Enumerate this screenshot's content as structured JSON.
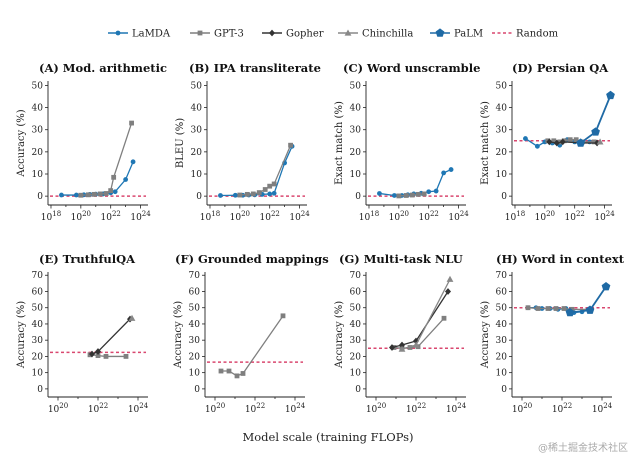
{
  "figure": {
    "xlabel": "Model scale (training FLOPs)",
    "watermark": "@稀土掘金技术社区"
  },
  "legend": [
    {
      "name": "LaMDA",
      "color": "#1f77b4",
      "marker": "circle"
    },
    {
      "name": "GPT-3",
      "color": "#7f7f7f",
      "marker": "square"
    },
    {
      "name": "Gopher",
      "color": "#333333",
      "marker": "diamond"
    },
    {
      "name": "Chinchilla",
      "color": "#888888",
      "marker": "triangle"
    },
    {
      "name": "PaLM",
      "color": "#1f6aa5",
      "marker": "pentagon"
    },
    {
      "name": "Random",
      "color": "#d9476f",
      "marker": "dash"
    }
  ],
  "chart_data": [
    {
      "type": "line",
      "title": "(A) Mod. arithmetic",
      "ylabel": "Accuracy (%)",
      "xscale": "log",
      "xlim_exp": [
        17.8,
        24.5
      ],
      "xticks_exp": [
        18,
        20,
        22,
        24
      ],
      "ylim": [
        -4,
        52
      ],
      "yticks": [
        0,
        10,
        20,
        30,
        40,
        50
      ],
      "random": 0,
      "series": [
        {
          "name": "LaMDA",
          "points": [
            [
              18.7,
              0.5
            ],
            [
              19.7,
              0.5
            ],
            [
              20.2,
              0.6
            ],
            [
              20.6,
              0.8
            ],
            [
              21.0,
              0.9
            ],
            [
              21.5,
              1.0
            ],
            [
              22.0,
              1.5
            ],
            [
              22.3,
              2.0
            ],
            [
              23.0,
              7.5
            ],
            [
              23.5,
              15.5
            ]
          ]
        },
        {
          "name": "GPT-3",
          "points": [
            [
              20.0,
              0.4
            ],
            [
              20.5,
              0.6
            ],
            [
              20.9,
              0.8
            ],
            [
              21.3,
              1.0
            ],
            [
              21.7,
              1.2
            ],
            [
              22.0,
              2.5
            ],
            [
              22.2,
              8.5
            ],
            [
              23.4,
              33.0
            ]
          ]
        }
      ]
    },
    {
      "type": "line",
      "title": "(B) IPA transliterate",
      "ylabel": "BLEU (%)",
      "xscale": "log",
      "xlim_exp": [
        17.8,
        24.5
      ],
      "xticks_exp": [
        18,
        20,
        22,
        24
      ],
      "ylim": [
        -4,
        52
      ],
      "yticks": [
        0,
        10,
        20,
        30,
        40,
        50
      ],
      "random": 0,
      "series": [
        {
          "name": "LaMDA",
          "points": [
            [
              18.7,
              0.3
            ],
            [
              19.7,
              0.4
            ],
            [
              20.2,
              0.4
            ],
            [
              20.6,
              0.5
            ],
            [
              21.0,
              0.6
            ],
            [
              21.5,
              0.8
            ],
            [
              22.0,
              1.0
            ],
            [
              22.3,
              1.3
            ],
            [
              23.0,
              15.0
            ],
            [
              23.5,
              22.5
            ]
          ]
        },
        {
          "name": "GPT-3",
          "points": [
            [
              20.0,
              0.5
            ],
            [
              20.5,
              0.8
            ],
            [
              20.9,
              1.0
            ],
            [
              21.3,
              1.6
            ],
            [
              21.7,
              3.0
            ],
            [
              22.0,
              4.5
            ],
            [
              22.3,
              5.5
            ],
            [
              23.4,
              23.0
            ]
          ]
        }
      ]
    },
    {
      "type": "line",
      "title": "(C) Word unscramble",
      "ylabel": "Exact match (%)",
      "xscale": "log",
      "xlim_exp": [
        17.8,
        24.5
      ],
      "xticks_exp": [
        18,
        20,
        22,
        24
      ],
      "ylim": [
        -4,
        52
      ],
      "yticks": [
        0,
        10,
        20,
        30,
        40,
        50
      ],
      "random": 0,
      "series": [
        {
          "name": "LaMDA",
          "points": [
            [
              18.7,
              1.2
            ],
            [
              19.7,
              0.3
            ],
            [
              20.2,
              0.3
            ],
            [
              20.6,
              0.6
            ],
            [
              21.0,
              1.0
            ],
            [
              21.5,
              1.3
            ],
            [
              22.0,
              2.0
            ],
            [
              22.5,
              2.3
            ],
            [
              23.0,
              10.5
            ],
            [
              23.5,
              12.0
            ]
          ]
        },
        {
          "name": "GPT-3",
          "points": [
            [
              20.0,
              0.1
            ],
            [
              20.5,
              0.3
            ],
            [
              20.9,
              0.5
            ],
            [
              21.3,
              0.8
            ],
            [
              21.7,
              1.0
            ]
          ]
        }
      ]
    },
    {
      "type": "line",
      "title": "(D) Persian QA",
      "ylabel": "Exact match (%)",
      "xscale": "log",
      "xlim_exp": [
        17.8,
        24.5
      ],
      "xticks_exp": [
        18,
        20,
        22,
        24
      ],
      "ylim": [
        -4,
        52
      ],
      "yticks": [
        0,
        10,
        20,
        30,
        40,
        50
      ],
      "random": 25,
      "series": [
        {
          "name": "LaMDA",
          "points": [
            [
              18.7,
              26.0
            ],
            [
              19.5,
              22.5
            ],
            [
              20.0,
              24.5
            ],
            [
              20.5,
              24.0
            ],
            [
              21.0,
              23.0
            ],
            [
              21.5,
              25.5
            ],
            [
              22.0,
              24.5
            ],
            [
              22.5,
              24.0
            ],
            [
              23.0,
              24.5
            ]
          ]
        },
        {
          "name": "GPT-3",
          "points": [
            [
              20.2,
              25.0
            ],
            [
              20.6,
              25.0
            ],
            [
              21.0,
              24.5
            ],
            [
              21.3,
              25.0
            ],
            [
              21.7,
              25.5
            ],
            [
              22.1,
              25.5
            ],
            [
              22.5,
              24.5
            ],
            [
              23.3,
              24.5
            ]
          ]
        },
        {
          "name": "Gopher",
          "points": [
            [
              20.3,
              24.5
            ],
            [
              20.8,
              24.0
            ],
            [
              21.2,
              24.5
            ],
            [
              22.5,
              24.0
            ],
            [
              23.5,
              24.0
            ]
          ]
        },
        {
          "name": "Chinchilla",
          "points": [
            [
              23.7,
              24.5
            ]
          ]
        },
        {
          "name": "PaLM",
          "points": [
            [
              22.4,
              24.0
            ],
            [
              23.4,
              29.0
            ],
            [
              24.4,
              45.5
            ]
          ]
        }
      ]
    },
    {
      "type": "line",
      "title": "(E) TruthfulQA",
      "ylabel": "Accuracy (%)",
      "xscale": "log",
      "xlim_exp": [
        19.5,
        24.5
      ],
      "xticks_exp": [
        20,
        22,
        24
      ],
      "ylim": [
        -5,
        72
      ],
      "yticks": [
        0,
        10,
        20,
        30,
        40,
        50,
        60,
        70
      ],
      "random": 22.5,
      "series": [
        {
          "name": "GPT-3",
          "points": [
            [
              21.6,
              21.0
            ],
            [
              22.0,
              20.5
            ],
            [
              22.4,
              20.0
            ],
            [
              23.4,
              20.0
            ]
          ]
        },
        {
          "name": "Gopher",
          "points": [
            [
              21.7,
              21.5
            ],
            [
              22.0,
              23.0
            ],
            [
              23.6,
              43.0
            ]
          ]
        },
        {
          "name": "Chinchilla",
          "points": [
            [
              23.7,
              43.5
            ]
          ]
        }
      ]
    },
    {
      "type": "line",
      "title": "(F) Grounded mappings",
      "ylabel": "Accuracy (%)",
      "xscale": "log",
      "xlim_exp": [
        19.5,
        24.5
      ],
      "xticks_exp": [
        20,
        22,
        24
      ],
      "ylim": [
        -5,
        72
      ],
      "yticks": [
        0,
        10,
        20,
        30,
        40,
        50,
        60,
        70
      ],
      "random": 16.5,
      "series": [
        {
          "name": "GPT-3",
          "points": [
            [
              20.3,
              11.0
            ],
            [
              20.7,
              11.0
            ],
            [
              21.1,
              8.0
            ],
            [
              21.4,
              9.5
            ],
            [
              23.4,
              45.0
            ]
          ]
        }
      ]
    },
    {
      "type": "line",
      "title": "(G) Multi-task NLU",
      "ylabel": "Accuracy (%)",
      "xscale": "log",
      "xlim_exp": [
        19.5,
        24.5
      ],
      "xticks_exp": [
        20,
        22,
        24
      ],
      "ylim": [
        -5,
        72
      ],
      "yticks": [
        0,
        10,
        20,
        30,
        40,
        50,
        60,
        70
      ],
      "random": 25,
      "series": [
        {
          "name": "GPT-3",
          "points": [
            [
              20.9,
              25.5
            ],
            [
              21.3,
              25.0
            ],
            [
              21.7,
              25.5
            ],
            [
              22.1,
              26.0
            ],
            [
              23.4,
              43.5
            ]
          ]
        },
        {
          "name": "Gopher",
          "points": [
            [
              20.8,
              25.5
            ],
            [
              21.3,
              27.0
            ],
            [
              22.0,
              29.5
            ],
            [
              23.6,
              60.0
            ]
          ]
        },
        {
          "name": "Chinchilla",
          "points": [
            [
              21.3,
              24.5
            ],
            [
              22.0,
              27.0
            ],
            [
              23.7,
              67.5
            ]
          ]
        }
      ]
    },
    {
      "type": "line",
      "title": "(H) Word in context",
      "ylabel": "Accuracy (%)",
      "xscale": "log",
      "xlim_exp": [
        19.5,
        24.5
      ],
      "xticks_exp": [
        20,
        22,
        24
      ],
      "ylim": [
        -5,
        72
      ],
      "yticks": [
        0,
        10,
        20,
        30,
        40,
        50,
        60,
        70
      ],
      "random": 50,
      "series": [
        {
          "name": "LaMDA",
          "points": [
            [
              20.3,
              50.0
            ],
            [
              20.7,
              50.0
            ],
            [
              21.0,
              49.5
            ],
            [
              21.4,
              49.5
            ],
            [
              21.8,
              49.0
            ],
            [
              22.2,
              49.5
            ],
            [
              22.6,
              47.0
            ],
            [
              23.0,
              47.5
            ]
          ]
        },
        {
          "name": "GPT-3",
          "points": [
            [
              20.3,
              50.0
            ],
            [
              20.8,
              49.5
            ],
            [
              21.3,
              49.5
            ],
            [
              21.7,
              49.5
            ],
            [
              22.1,
              49.5
            ],
            [
              22.5,
              49.0
            ],
            [
              23.4,
              49.0
            ]
          ]
        },
        {
          "name": "PaLM",
          "points": [
            [
              22.4,
              47.0
            ],
            [
              23.4,
              48.5
            ],
            [
              24.2,
              63.0
            ]
          ]
        }
      ]
    }
  ]
}
